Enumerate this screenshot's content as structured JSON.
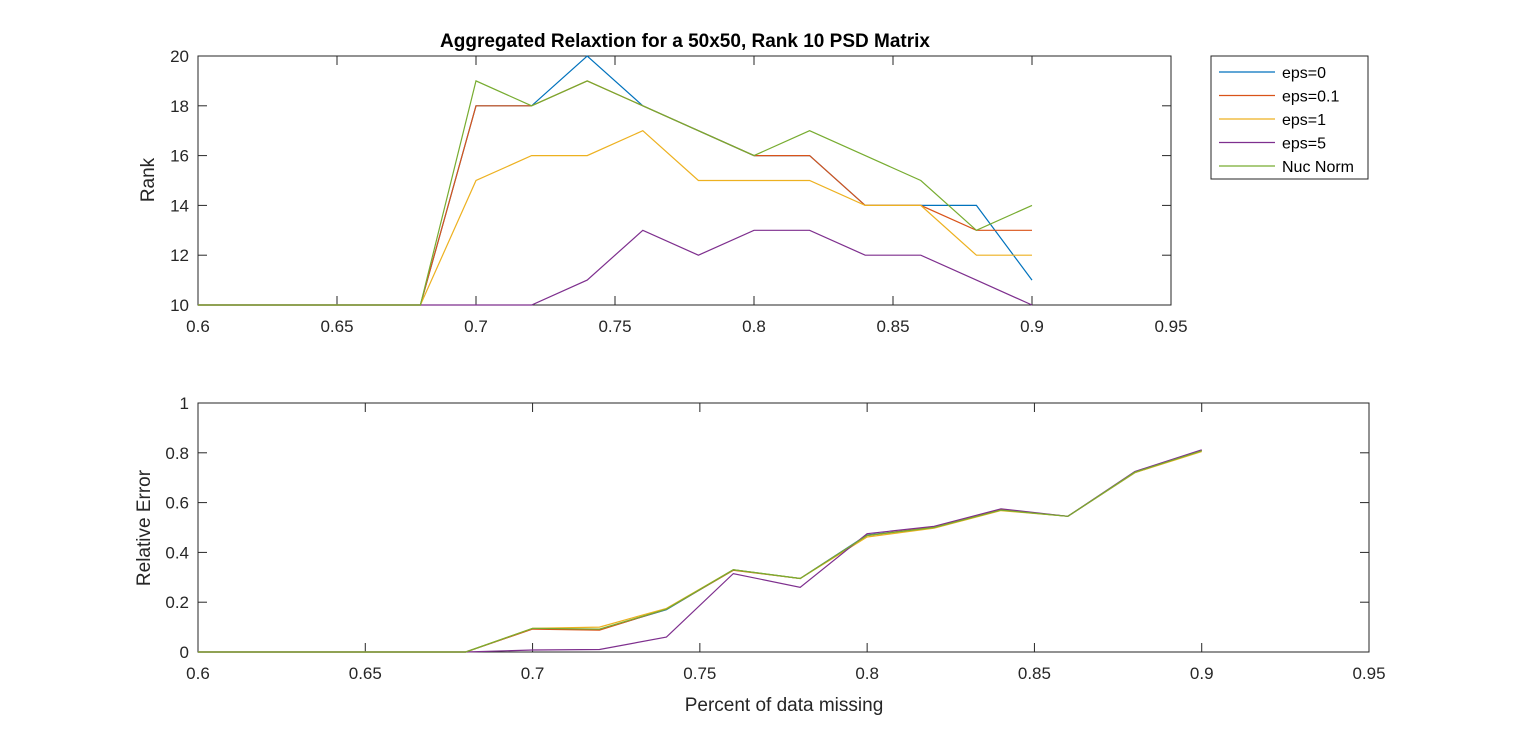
{
  "chart_data": [
    {
      "type": "line",
      "title": "Aggregated Relaxtion for a 50x50, Rank 10 PSD Matrix",
      "xlabel": "",
      "ylabel": "Rank",
      "xlim": [
        0.6,
        0.95
      ],
      "ylim": [
        10,
        20
      ],
      "xticks": [
        "0.6",
        "0.65",
        "0.7",
        "0.75",
        "0.8",
        "0.85",
        "0.9",
        "0.95"
      ],
      "yticks": [
        "10",
        "12",
        "14",
        "16",
        "18",
        "20"
      ],
      "x": [
        0.6,
        0.62,
        0.64,
        0.66,
        0.68,
        0.7,
        0.72,
        0.74,
        0.76,
        0.78,
        0.8,
        0.82,
        0.84,
        0.86,
        0.88,
        0.9
      ],
      "grid": false,
      "legend_position": "outside-right",
      "series": [
        {
          "name": "eps=0",
          "color": "#0072BD",
          "values": [
            10,
            10,
            10,
            10,
            10,
            18,
            18,
            20,
            18,
            17,
            16,
            16,
            14,
            14,
            14,
            11
          ]
        },
        {
          "name": "eps=0.1",
          "color": "#D95319",
          "values": [
            10,
            10,
            10,
            10,
            10,
            18,
            18,
            19,
            18,
            17,
            16,
            16,
            14,
            14,
            13,
            13
          ]
        },
        {
          "name": "eps=1",
          "color": "#EDB120",
          "values": [
            10,
            10,
            10,
            10,
            10,
            15,
            16,
            16,
            17,
            15,
            15,
            15,
            14,
            14,
            12,
            12
          ]
        },
        {
          "name": "eps=5",
          "color": "#7E2F8E",
          "values": [
            10,
            10,
            10,
            10,
            10,
            10,
            10,
            11,
            13,
            12,
            13,
            13,
            12,
            12,
            11,
            10
          ]
        },
        {
          "name": "Nuc Norm",
          "color": "#77AC30",
          "values": [
            10,
            10,
            10,
            10,
            10,
            19,
            18,
            19,
            18,
            17,
            16,
            17,
            16,
            15,
            13,
            14
          ]
        }
      ]
    },
    {
      "type": "line",
      "title": "",
      "xlabel": "Percent of data missing",
      "ylabel": "Relative Error",
      "xlim": [
        0.6,
        0.95
      ],
      "ylim": [
        0,
        1
      ],
      "xticks": [
        "0.6",
        "0.65",
        "0.7",
        "0.75",
        "0.8",
        "0.85",
        "0.9",
        "0.95"
      ],
      "yticks": [
        "0",
        "0.2",
        "0.4",
        "0.6",
        "0.8",
        "1"
      ],
      "x": [
        0.6,
        0.62,
        0.64,
        0.66,
        0.68,
        0.7,
        0.72,
        0.74,
        0.76,
        0.78,
        0.8,
        0.82,
        0.84,
        0.86,
        0.88,
        0.9
      ],
      "grid": false,
      "series": [
        {
          "color": "#0072BD",
          "values": [
            0,
            0,
            0,
            0,
            0,
            0.093,
            0.09,
            0.17,
            0.33,
            0.295,
            0.47,
            0.5,
            0.57,
            0.545,
            0.72,
            0.81
          ]
        },
        {
          "color": "#D95319",
          "values": [
            0,
            0,
            0,
            0,
            0,
            0.092,
            0.088,
            0.172,
            0.328,
            0.295,
            0.468,
            0.502,
            0.572,
            0.545,
            0.722,
            0.81
          ]
        },
        {
          "color": "#EDB120",
          "values": [
            0,
            0,
            0,
            0,
            0,
            0.095,
            0.1,
            0.175,
            0.33,
            0.295,
            0.462,
            0.497,
            0.568,
            0.545,
            0.72,
            0.805
          ]
        },
        {
          "color": "#7E2F8E",
          "values": [
            0,
            0,
            0,
            0,
            0,
            0.008,
            0.01,
            0.06,
            0.315,
            0.26,
            0.475,
            0.505,
            0.575,
            0.545,
            0.725,
            0.812
          ]
        },
        {
          "color": "#77AC30",
          "values": [
            0,
            0,
            0,
            0,
            0,
            0.095,
            0.092,
            0.172,
            0.33,
            0.295,
            0.468,
            0.5,
            0.57,
            0.545,
            0.722,
            0.808
          ]
        }
      ]
    }
  ]
}
